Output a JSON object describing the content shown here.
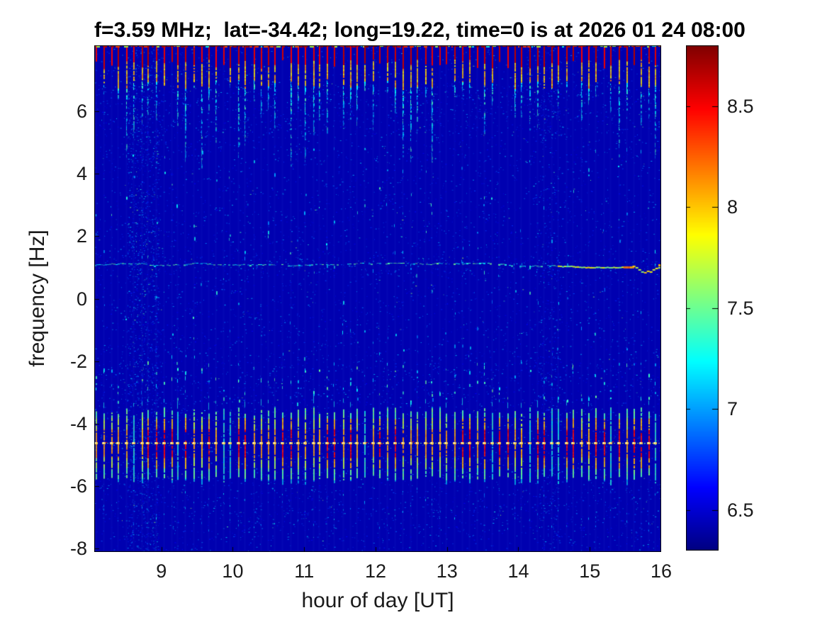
{
  "title": "f=3.59 MHz;  lat=-34.42; long=19.22, time=0 is at 2026 01 24 08:00",
  "axes": {
    "xlabel": "hour of day [UT]",
    "ylabel": "frequency [Hz]",
    "x_tick_labels": [
      "9",
      "10",
      "11",
      "12",
      "13",
      "14",
      "15",
      "16"
    ],
    "y_tick_labels": [
      "6",
      "4",
      "2",
      "0",
      "-2",
      "-4",
      "-6",
      "-8"
    ]
  },
  "colorbar_labels": [
    "8.5",
    "8",
    "7.5",
    "7",
    "6.5"
  ],
  "colors": {
    "background_floor": "#0104b6",
    "axes_line": "#000000",
    "text": "#1a1a1a"
  },
  "chart_data": {
    "type": "heatmap",
    "subtype": "spectrogram",
    "title": "f=3.59 MHz;  lat=-34.42; long=19.22, time=0 is at 2026 01 24 08:00",
    "xlabel": "hour of day [UT]",
    "ylabel": "frequency [Hz]",
    "xlim": [
      8.06,
      16.0
    ],
    "ylim": [
      -8.11,
      8.11
    ],
    "x_ticks": [
      9,
      10,
      11,
      12,
      13,
      14,
      15,
      16
    ],
    "y_ticks": [
      6,
      4,
      2,
      0,
      -2,
      -4,
      -6,
      -8
    ],
    "colormap": "jet",
    "colorbar": {
      "min": 6.3,
      "max": 8.8,
      "ticks": [
        8.5,
        8,
        7.5,
        7,
        6.5
      ]
    },
    "background_level": 6.42,
    "grid": false,
    "features": {
      "pulse_spacing_hours": 0.1045,
      "first_pulse_hour": 8.085,
      "top_edge_band": {
        "f_top": 8.11,
        "thickness_hz": 0.07,
        "level": 8.8
      },
      "top_band": {
        "f_top": 8.11,
        "f_red_bottom": 7.5,
        "f_yellow_bottom": 7.0,
        "tip_f_strong": [
          4.2,
          5.9
        ],
        "tip_f_weak": [
          5.7,
          6.9
        ],
        "peak_level": 8.7
      },
      "bottom_band": {
        "center_f": -4.62,
        "f_range": [
          -5.95,
          -3.45
        ],
        "center_line_level": 8.8,
        "peak_level": 8.6
      },
      "horizontal_line": {
        "f": 1.08,
        "level_left": 7.0,
        "bright_from_hour": 14.55,
        "bright_blob_hours": [
          15.45,
          15.6
        ],
        "dip_hours": [
          15.6,
          15.85
        ],
        "level_right": 7.7
      },
      "noise_columns": [
        {
          "hours": [
            8.52,
            8.97
          ],
          "strength": "strong"
        },
        {
          "hours": [
            14.28,
            14.58
          ],
          "strength": "faint"
        }
      ],
      "speckle_rows_f": [
        [
          5.2,
          6.9
        ],
        [
          -1.8,
          -3.4
        ],
        [
          -5.9,
          -7.7
        ],
        [
          0.7,
          1.5
        ]
      ]
    }
  }
}
